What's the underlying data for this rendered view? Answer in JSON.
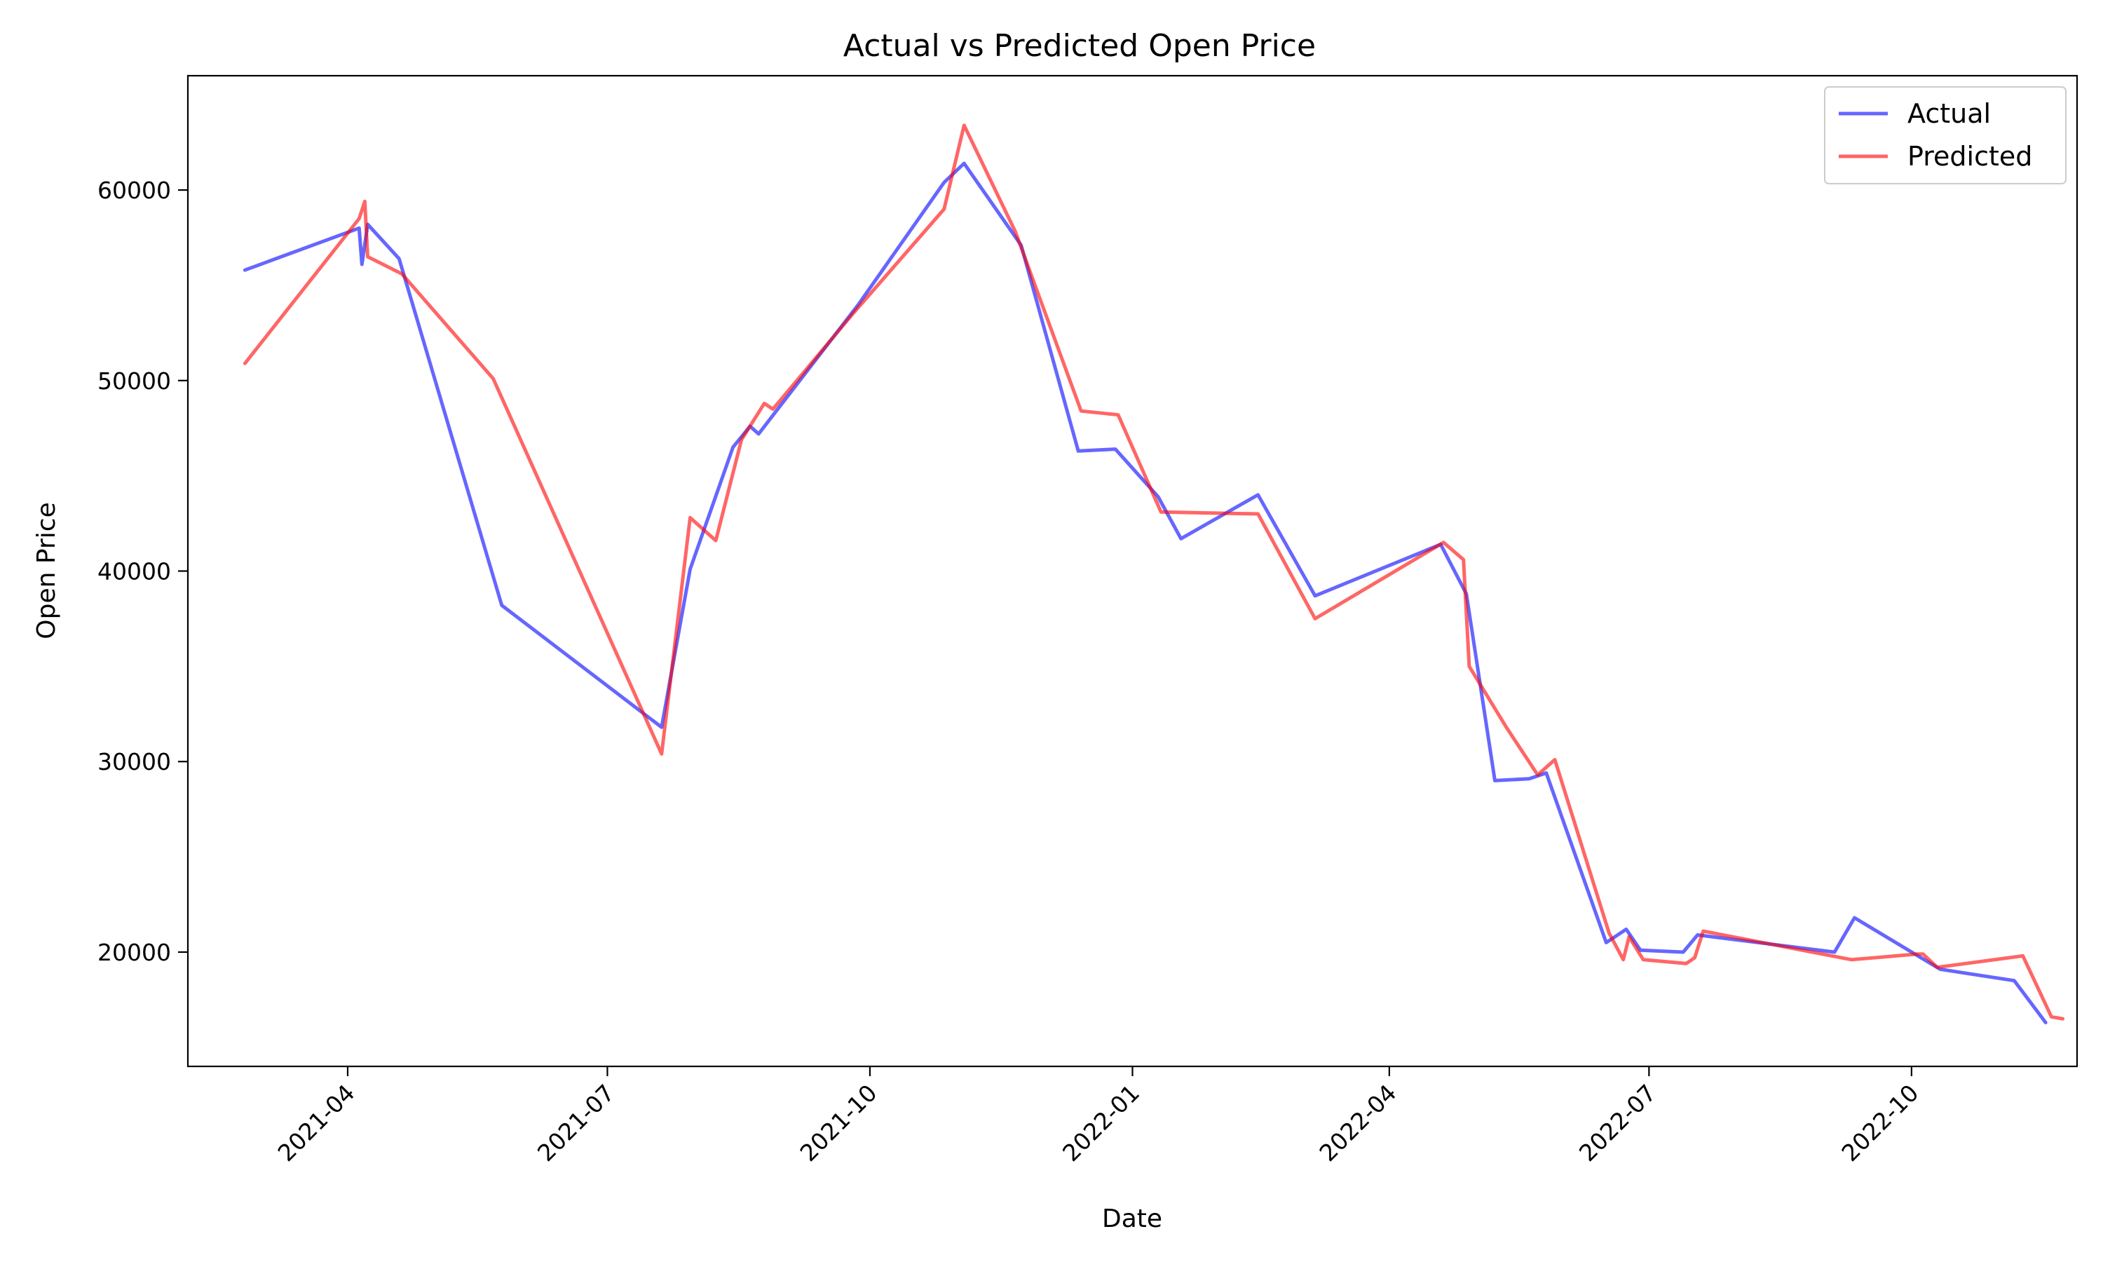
{
  "chart_data": {
    "type": "line",
    "title": "Actual vs Predicted Open Price",
    "xlabel": "Date",
    "ylabel": "Open Price",
    "x_type": "date",
    "xlim": [
      "2021-02-04",
      "2022-11-28"
    ],
    "ylim": [
      14000,
      66000
    ],
    "x_ticks": [
      "2021-04",
      "2021-07",
      "2021-10",
      "2022-01",
      "2022-04",
      "2022-07",
      "2022-10"
    ],
    "x_tick_dates": [
      "2021-04-01",
      "2021-07-01",
      "2021-10-01",
      "2022-01-01",
      "2022-04-01",
      "2022-07-01",
      "2022-10-01"
    ],
    "y_ticks": [
      20000,
      30000,
      40000,
      50000,
      60000
    ],
    "grid": false,
    "legend_position": "top-right",
    "series": [
      {
        "name": "Actual",
        "color": "#0000ff",
        "points": [
          [
            "2021-02-24",
            55800
          ],
          [
            "2021-04-05",
            58000
          ],
          [
            "2021-04-06",
            56100
          ],
          [
            "2021-04-08",
            58200
          ],
          [
            "2021-04-19",
            56400
          ],
          [
            "2021-05-25",
            38200
          ],
          [
            "2021-07-20",
            31800
          ],
          [
            "2021-07-30",
            40100
          ],
          [
            "2021-08-14",
            46500
          ],
          [
            "2021-08-20",
            47600
          ],
          [
            "2021-08-23",
            47200
          ],
          [
            "2021-09-27",
            54000
          ],
          [
            "2021-10-27",
            60400
          ],
          [
            "2021-11-03",
            61400
          ],
          [
            "2021-11-23",
            57100
          ],
          [
            "2021-12-13",
            46300
          ],
          [
            "2021-12-26",
            46400
          ],
          [
            "2022-01-10",
            43900
          ],
          [
            "2022-01-18",
            41700
          ],
          [
            "2022-02-14",
            44000
          ],
          [
            "2022-03-06",
            38700
          ],
          [
            "2022-04-19",
            41400
          ],
          [
            "2022-04-28",
            38800
          ],
          [
            "2022-05-08",
            29000
          ],
          [
            "2022-05-20",
            29100
          ],
          [
            "2022-05-26",
            29400
          ],
          [
            "2022-06-16",
            20500
          ],
          [
            "2022-06-23",
            21200
          ],
          [
            "2022-06-28",
            20100
          ],
          [
            "2022-07-13",
            20000
          ],
          [
            "2022-07-18",
            20900
          ],
          [
            "2022-09-04",
            20000
          ],
          [
            "2022-09-11",
            21800
          ],
          [
            "2022-10-11",
            19100
          ],
          [
            "2022-11-06",
            18500
          ],
          [
            "2022-11-17",
            16300
          ]
        ]
      },
      {
        "name": "Predicted",
        "color": "#ff0000",
        "points": [
          [
            "2021-02-24",
            50900
          ],
          [
            "2021-04-05",
            58500
          ],
          [
            "2021-04-07",
            59400
          ],
          [
            "2021-04-08",
            56500
          ],
          [
            "2021-04-20",
            55600
          ],
          [
            "2021-05-22",
            50100
          ],
          [
            "2021-07-20",
            30400
          ],
          [
            "2021-07-30",
            42800
          ],
          [
            "2021-08-08",
            41600
          ],
          [
            "2021-08-17",
            46900
          ],
          [
            "2021-08-25",
            48800
          ],
          [
            "2021-08-28",
            48500
          ],
          [
            "2021-09-25",
            53500
          ],
          [
            "2021-10-27",
            59000
          ],
          [
            "2021-11-03",
            63400
          ],
          [
            "2021-11-21",
            57800
          ],
          [
            "2021-12-14",
            48400
          ],
          [
            "2021-12-27",
            48200
          ],
          [
            "2022-01-11",
            43100
          ],
          [
            "2022-02-14",
            43000
          ],
          [
            "2022-03-06",
            37500
          ],
          [
            "2022-04-20",
            41500
          ],
          [
            "2022-04-27",
            40600
          ],
          [
            "2022-04-29",
            35000
          ],
          [
            "2022-05-12",
            31800
          ],
          [
            "2022-05-23",
            29300
          ],
          [
            "2022-05-29",
            30100
          ],
          [
            "2022-06-17",
            21000
          ],
          [
            "2022-06-22",
            19600
          ],
          [
            "2022-06-24",
            20800
          ],
          [
            "2022-06-29",
            19600
          ],
          [
            "2022-07-14",
            19400
          ],
          [
            "2022-07-17",
            19700
          ],
          [
            "2022-07-20",
            21100
          ],
          [
            "2022-09-10",
            19600
          ],
          [
            "2022-10-03",
            19900
          ],
          [
            "2022-10-05",
            19900
          ],
          [
            "2022-10-10",
            19200
          ],
          [
            "2022-11-09",
            19800
          ],
          [
            "2022-11-19",
            16600
          ],
          [
            "2022-11-23",
            16500
          ]
        ]
      }
    ]
  }
}
